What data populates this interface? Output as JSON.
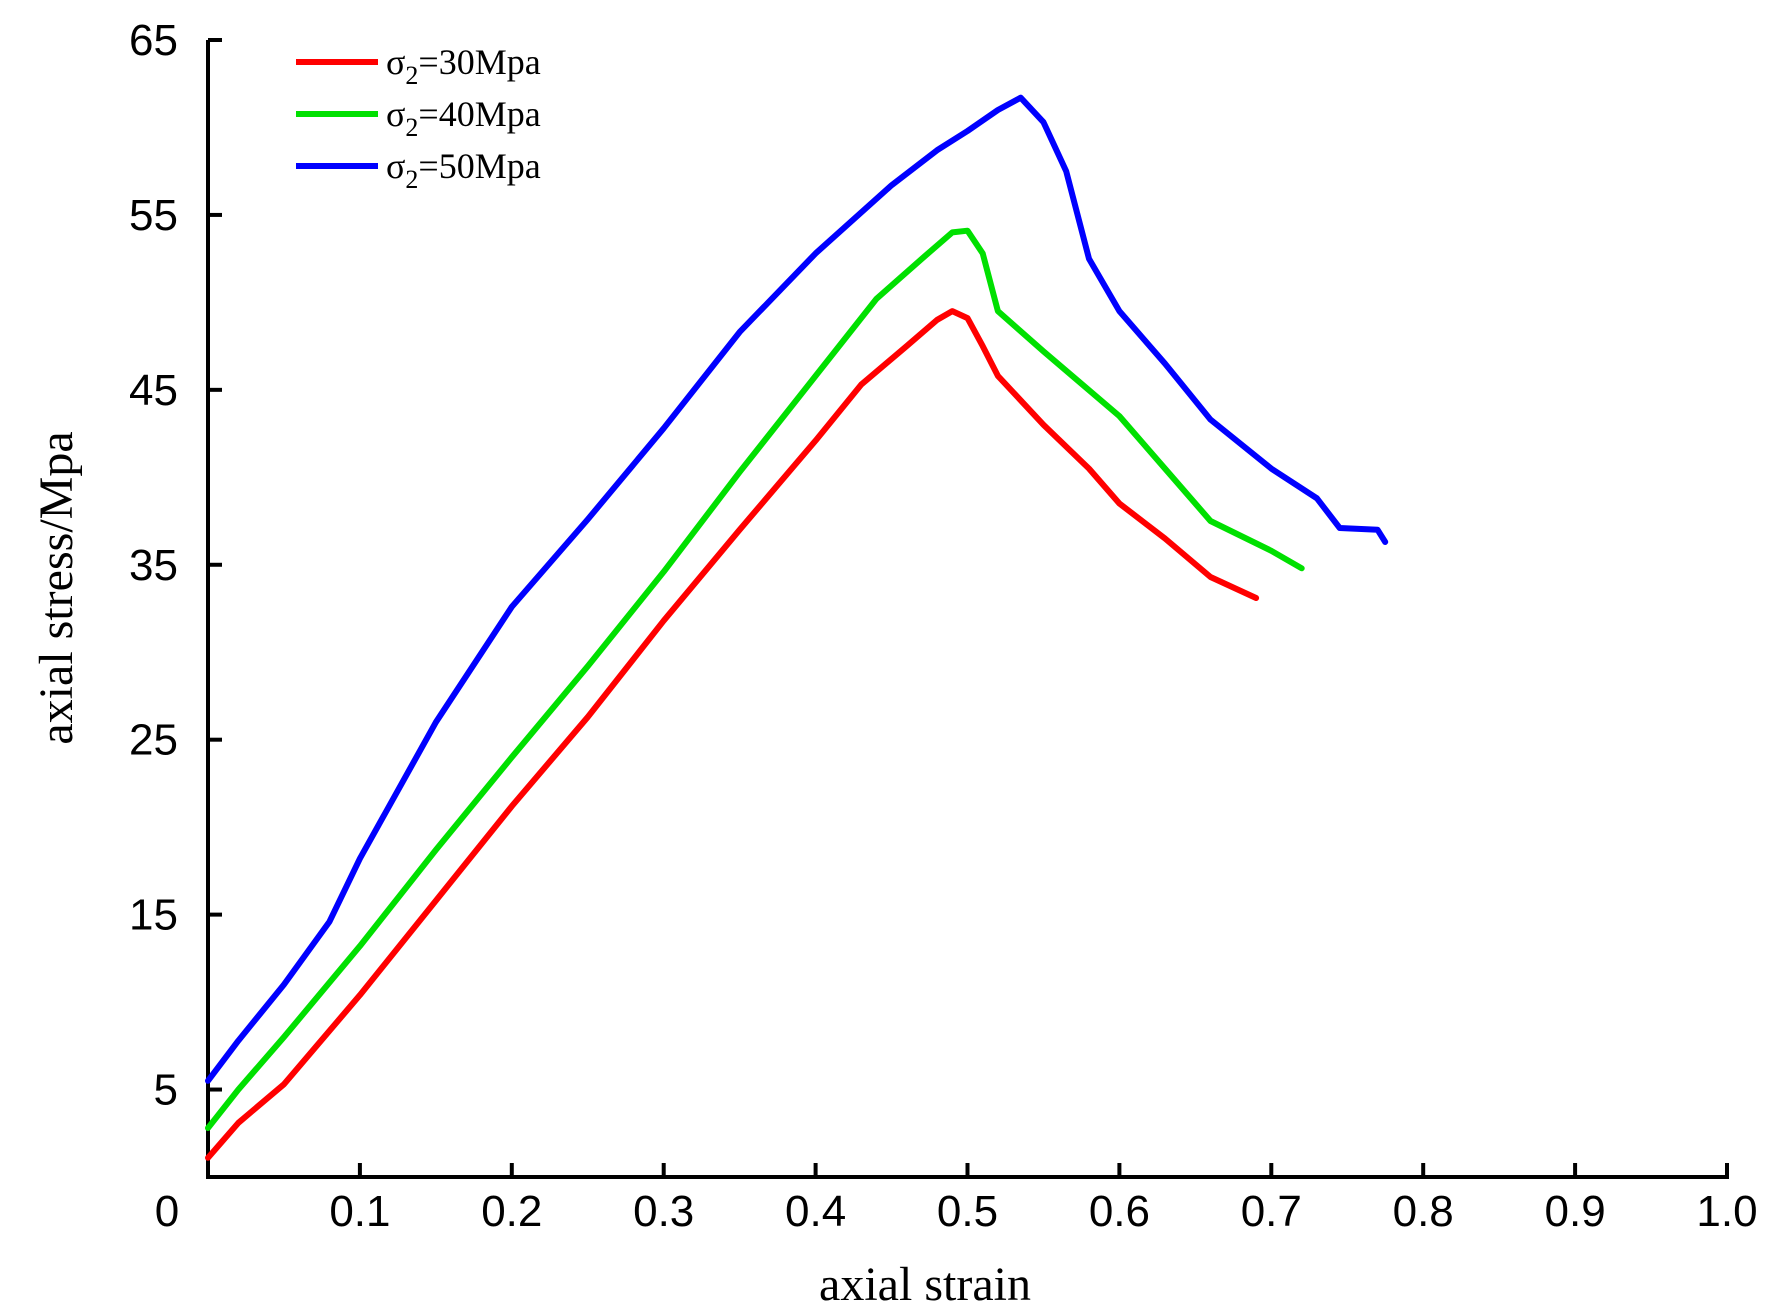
{
  "chart_data": {
    "type": "line",
    "title": "",
    "xlabel": "axial strain",
    "ylabel": "axial stress/Mpa",
    "xlim": [
      0,
      1.0
    ],
    "ylim": [
      0,
      65
    ],
    "x_ticks": [
      0,
      0.1,
      0.2,
      0.3,
      0.4,
      0.5,
      0.6,
      0.7,
      0.8,
      0.9,
      1.0
    ],
    "x_tick_labels": [
      "0",
      "0.1",
      "0.2",
      "0.3",
      "0.4",
      "0.5",
      "0.6",
      "0.7",
      "0.8",
      "0.9",
      "1.0"
    ],
    "y_ticks": [
      5,
      15,
      25,
      35,
      45,
      55,
      65
    ],
    "y_tick_labels": [
      "5",
      "15",
      "25",
      "35",
      "45",
      "55",
      "65"
    ],
    "grid": false,
    "legend_position": "top-left",
    "series": [
      {
        "name": "σ2=30Mpa",
        "label_main": "σ",
        "label_sub": "2",
        "label_rest": "=30Mpa",
        "color": "#ff0000",
        "points": [
          [
            0,
            1.1
          ],
          [
            0.02,
            3.1
          ],
          [
            0.05,
            5.3
          ],
          [
            0.1,
            10.4
          ],
          [
            0.15,
            15.8
          ],
          [
            0.2,
            21.2
          ],
          [
            0.25,
            26.3
          ],
          [
            0.3,
            31.8
          ],
          [
            0.35,
            37.0
          ],
          [
            0.4,
            42.1
          ],
          [
            0.43,
            45.3
          ],
          [
            0.46,
            47.5
          ],
          [
            0.48,
            49.0
          ],
          [
            0.49,
            49.5
          ],
          [
            0.5,
            49.1
          ],
          [
            0.51,
            47.5
          ],
          [
            0.52,
            45.8
          ],
          [
            0.55,
            43.0
          ],
          [
            0.58,
            40.5
          ],
          [
            0.6,
            38.5
          ],
          [
            0.63,
            36.5
          ],
          [
            0.66,
            34.3
          ],
          [
            0.69,
            33.1
          ]
        ]
      },
      {
        "name": "σ2=40Mpa",
        "label_main": "σ",
        "label_sub": "2",
        "label_rest": "=40Mpa",
        "color": "#00e000",
        "points": [
          [
            0,
            2.8
          ],
          [
            0.02,
            5.0
          ],
          [
            0.05,
            8.0
          ],
          [
            0.1,
            13.2
          ],
          [
            0.15,
            18.7
          ],
          [
            0.2,
            24.0
          ],
          [
            0.25,
            29.2
          ],
          [
            0.3,
            34.6
          ],
          [
            0.35,
            40.3
          ],
          [
            0.4,
            45.8
          ],
          [
            0.44,
            50.2
          ],
          [
            0.47,
            52.5
          ],
          [
            0.49,
            54.0
          ],
          [
            0.5,
            54.1
          ],
          [
            0.51,
            52.8
          ],
          [
            0.52,
            49.5
          ],
          [
            0.55,
            47.2
          ],
          [
            0.6,
            43.5
          ],
          [
            0.63,
            40.5
          ],
          [
            0.66,
            37.5
          ],
          [
            0.7,
            35.8
          ],
          [
            0.72,
            34.8
          ]
        ]
      },
      {
        "name": "σ2=50Mpa",
        "label_main": "σ",
        "label_sub": "2",
        "label_rest": "=50Mpa",
        "color": "#0000ff",
        "points": [
          [
            0,
            5.5
          ],
          [
            0.02,
            7.8
          ],
          [
            0.05,
            11.0
          ],
          [
            0.08,
            14.6
          ],
          [
            0.1,
            18.2
          ],
          [
            0.15,
            26.0
          ],
          [
            0.2,
            32.6
          ],
          [
            0.25,
            37.6
          ],
          [
            0.3,
            42.8
          ],
          [
            0.35,
            48.3
          ],
          [
            0.4,
            52.8
          ],
          [
            0.45,
            56.7
          ],
          [
            0.48,
            58.7
          ],
          [
            0.5,
            59.8
          ],
          [
            0.52,
            61.0
          ],
          [
            0.535,
            61.7
          ],
          [
            0.55,
            60.3
          ],
          [
            0.565,
            57.5
          ],
          [
            0.58,
            52.5
          ],
          [
            0.6,
            49.5
          ],
          [
            0.63,
            46.5
          ],
          [
            0.66,
            43.3
          ],
          [
            0.7,
            40.5
          ],
          [
            0.73,
            38.8
          ],
          [
            0.745,
            37.1
          ],
          [
            0.77,
            37.0
          ],
          [
            0.775,
            36.3
          ]
        ]
      }
    ]
  }
}
